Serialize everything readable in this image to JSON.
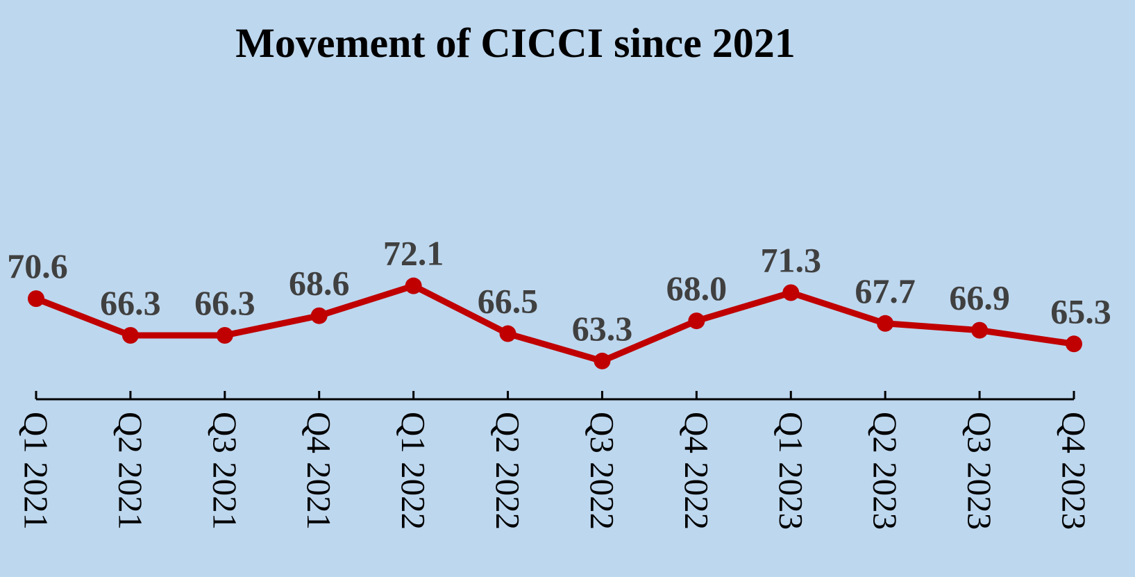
{
  "chart_data": {
    "type": "line",
    "title": "Movement of CICCI since 2021",
    "xlabel": "",
    "ylabel": "",
    "categories": [
      "Q1 2021",
      "Q2 2021",
      "Q3 2021",
      "Q4 2021",
      "Q1 2022",
      "Q2 2022",
      "Q3 2022",
      "Q4 2022",
      "Q1 2023",
      "Q2 2023",
      "Q3 2023",
      "Q4 2023"
    ],
    "series": [
      {
        "values": [
          70.6,
          66.3,
          66.3,
          68.6,
          72.1,
          66.5,
          63.3,
          68.0,
          71.3,
          67.7,
          66.9,
          65.3
        ],
        "data_labels": [
          "70.6",
          "66.3",
          "66.3",
          "68.6",
          "72.1",
          "66.5",
          "63.3",
          "68.0",
          "71.3",
          "67.7",
          "66.9",
          "65.3"
        ],
        "color": "#c00000"
      }
    ],
    "ylim": [
      45,
      95
    ],
    "grid": false,
    "legend": "none",
    "colors": {
      "background": "#bdd7ee",
      "line": "#c00000",
      "axis": "#000000",
      "data_label": "#404040",
      "title": "#000000"
    }
  }
}
